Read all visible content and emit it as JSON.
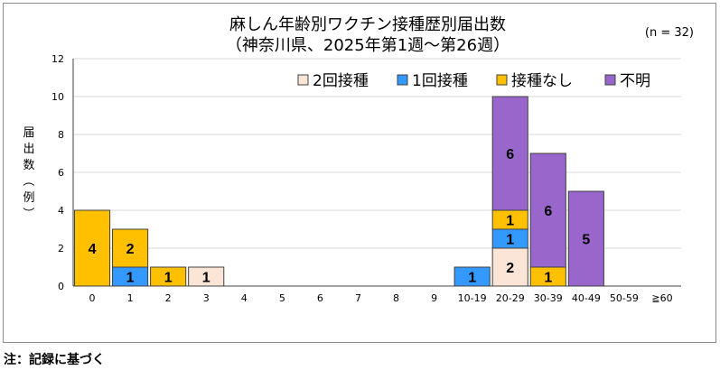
{
  "chart_data": {
    "type": "bar",
    "stacked": true,
    "title_line1": "麻しん年齢別ワクチン接種歴別届出数",
    "title_line2": "（神奈川県、2025年第1週～第26週）",
    "n_label": "(n = 32)",
    "ylabel": "届出数（例）",
    "ylim": [
      0,
      12
    ],
    "yticks": [
      0,
      2,
      4,
      6,
      8,
      10,
      12
    ],
    "grid": true,
    "legend_position": "top-right",
    "categories": [
      "0",
      "1",
      "2",
      "3",
      "4",
      "5",
      "6",
      "7",
      "8",
      "9",
      "10-19",
      "20-29",
      "30-39",
      "40-49",
      "50-59",
      "≧60"
    ],
    "series": [
      {
        "name": "接種なし",
        "color": "#FFC000",
        "values": [
          4,
          2,
          1,
          0,
          0,
          0,
          0,
          0,
          0,
          0,
          0,
          1,
          1,
          0,
          0,
          0
        ]
      },
      {
        "name": "1回接種",
        "color": "#3399FF",
        "values": [
          0,
          1,
          0,
          0,
          0,
          0,
          0,
          0,
          0,
          0,
          1,
          1,
          0,
          0,
          0,
          0
        ]
      },
      {
        "name": "2回接種",
        "color": "#FBE5D6",
        "values": [
          0,
          0,
          0,
          1,
          0,
          0,
          0,
          0,
          0,
          0,
          0,
          2,
          0,
          0,
          0,
          0
        ]
      },
      {
        "name": "不明",
        "color": "#9966CC",
        "values": [
          0,
          0,
          0,
          0,
          0,
          0,
          0,
          0,
          0,
          0,
          0,
          6,
          6,
          5,
          0,
          0
        ]
      }
    ],
    "stack_order": [
      "2回接種",
      "1回接種",
      "接種なし",
      "不明"
    ],
    "legend_order": [
      "2回接種",
      "1回接種",
      "接種なし",
      "不明"
    ]
  },
  "note": "注：記録に基づく"
}
